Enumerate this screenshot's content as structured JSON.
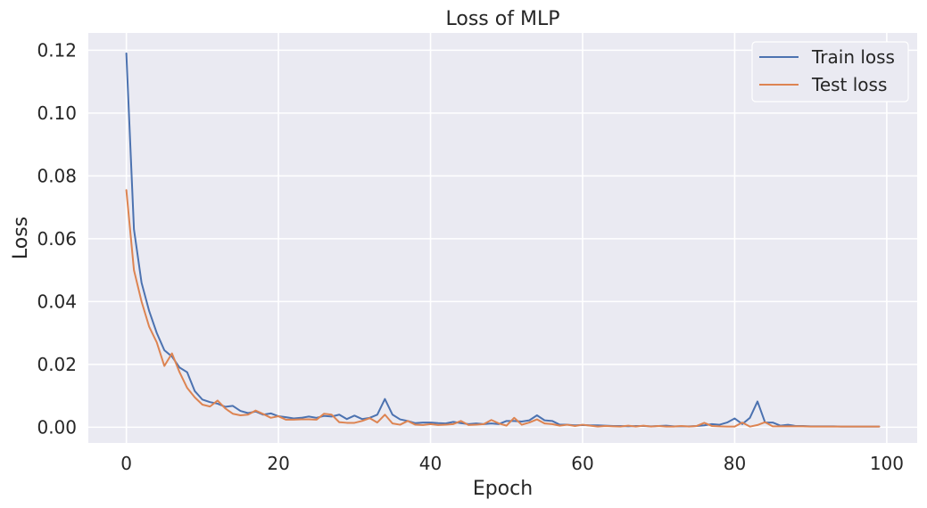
{
  "chart_data": {
    "type": "line",
    "title": "Loss of MLP",
    "xlabel": "Epoch",
    "ylabel": "Loss",
    "xlim": [
      -5,
      104
    ],
    "ylim": [
      -0.005,
      0.1255
    ],
    "x_ticks": [
      0,
      20,
      40,
      60,
      80,
      100
    ],
    "x_tick_labels": [
      "0",
      "20",
      "40",
      "60",
      "80",
      "100"
    ],
    "y_ticks": [
      0.0,
      0.02,
      0.04,
      0.06,
      0.08,
      0.1,
      0.12
    ],
    "y_tick_labels": [
      "0.00",
      "0.02",
      "0.04",
      "0.06",
      "0.08",
      "0.10",
      "0.12"
    ],
    "grid": true,
    "legend_position": "top-right",
    "background_color": "#eaeaf2",
    "grid_color": "#ffffff",
    "x": [
      0,
      1,
      2,
      3,
      4,
      5,
      6,
      7,
      8,
      9,
      10,
      11,
      12,
      13,
      14,
      15,
      16,
      17,
      18,
      19,
      20,
      21,
      22,
      23,
      24,
      25,
      26,
      27,
      28,
      29,
      30,
      31,
      32,
      33,
      34,
      35,
      36,
      37,
      38,
      39,
      40,
      41,
      42,
      43,
      44,
      45,
      46,
      47,
      48,
      49,
      50,
      51,
      52,
      53,
      54,
      55,
      56,
      57,
      58,
      59,
      60,
      61,
      62,
      63,
      64,
      65,
      66,
      67,
      68,
      69,
      70,
      71,
      72,
      73,
      74,
      75,
      76,
      77,
      78,
      79,
      80,
      81,
      82,
      83,
      84,
      85,
      86,
      87,
      88,
      89,
      90,
      91,
      92,
      93,
      94,
      95,
      96,
      97,
      98,
      99
    ],
    "series": [
      {
        "name": "Train loss",
        "color": "#4c72b0",
        "values": [
          0.119,
          0.063,
          0.046,
          0.037,
          0.03,
          0.0245,
          0.0225,
          0.019,
          0.0175,
          0.0115,
          0.0088,
          0.008,
          0.0075,
          0.0065,
          0.0068,
          0.0052,
          0.0045,
          0.005,
          0.004,
          0.0044,
          0.0035,
          0.0032,
          0.0028,
          0.003,
          0.0034,
          0.003,
          0.0036,
          0.0034,
          0.004,
          0.0026,
          0.0037,
          0.0026,
          0.003,
          0.004,
          0.009,
          0.004,
          0.0025,
          0.002,
          0.0013,
          0.0015,
          0.0015,
          0.0013,
          0.0012,
          0.0017,
          0.0013,
          0.001,
          0.0012,
          0.001,
          0.0012,
          0.001,
          0.002,
          0.002,
          0.0018,
          0.0022,
          0.0038,
          0.0022,
          0.002,
          0.0008,
          0.0008,
          0.0006,
          0.0007,
          0.0006,
          0.0006,
          0.0005,
          0.0004,
          0.0004,
          0.0003,
          0.0004,
          0.0004,
          0.0003,
          0.0004,
          0.0005,
          0.0003,
          0.0003,
          0.0003,
          0.0004,
          0.0006,
          0.001,
          0.0008,
          0.0015,
          0.0028,
          0.001,
          0.003,
          0.0082,
          0.0015,
          0.0015,
          0.0005,
          0.0008,
          0.0004,
          0.0004,
          0.0003,
          0.0003,
          0.0003,
          0.0003,
          0.0002,
          0.0002,
          0.0002,
          0.0002,
          0.0002,
          0.0002
        ]
      },
      {
        "name": "Test loss",
        "color": "#dd8452",
        "values": [
          0.0755,
          0.05,
          0.04,
          0.032,
          0.027,
          0.0195,
          0.0235,
          0.0175,
          0.0125,
          0.0095,
          0.0072,
          0.0066,
          0.0085,
          0.006,
          0.0043,
          0.0038,
          0.004,
          0.0053,
          0.0042,
          0.003,
          0.0035,
          0.0024,
          0.0024,
          0.0025,
          0.0025,
          0.0024,
          0.0043,
          0.004,
          0.0016,
          0.0014,
          0.0014,
          0.002,
          0.0029,
          0.0015,
          0.004,
          0.0012,
          0.0008,
          0.002,
          0.0008,
          0.0007,
          0.001,
          0.0007,
          0.0008,
          0.001,
          0.002,
          0.0007,
          0.0008,
          0.001,
          0.0023,
          0.0012,
          0.0005,
          0.003,
          0.0008,
          0.0015,
          0.0025,
          0.0012,
          0.001,
          0.0005,
          0.0008,
          0.0004,
          0.0008,
          0.0005,
          0.0002,
          0.0004,
          0.0003,
          0.0002,
          0.0005,
          0.0002,
          0.0005,
          0.0002,
          0.0004,
          0.0002,
          0.0002,
          0.0004,
          0.0002,
          0.0004,
          0.0014,
          0.0004,
          0.0003,
          0.0002,
          0.0002,
          0.0015,
          0.0002,
          0.0007,
          0.0016,
          0.0003,
          0.0003,
          0.0003,
          0.0003,
          0.0003,
          0.0002,
          0.0002,
          0.0002,
          0.0002,
          0.0002,
          0.0002,
          0.0002,
          0.0002,
          0.0002,
          0.0002
        ]
      }
    ]
  }
}
